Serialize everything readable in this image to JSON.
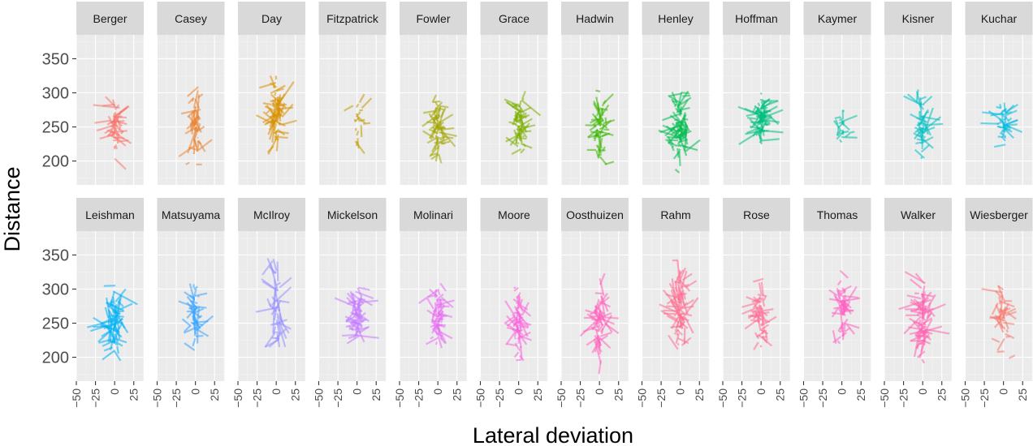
{
  "chart_data": {
    "type": "facet_segments",
    "xlabel": "Lateral deviation",
    "ylabel": "Distance",
    "xlim": [
      -50,
      38
    ],
    "ylim": [
      165,
      385
    ],
    "x_ticks": [
      -50,
      -25,
      0,
      25
    ],
    "x_tick_labels": [
      "-50",
      "-25",
      "0",
      "25"
    ],
    "y_ticks": [
      200,
      250,
      300,
      350
    ],
    "y_tick_labels": [
      "200",
      "250",
      "300",
      "350"
    ],
    "grid": true,
    "legend": "none",
    "colors": {
      "panel_background": "#ebebeb",
      "strip_background": "#d9d9d9",
      "grid_major": "#ffffff",
      "grid_minor": "#f4f4f4"
    },
    "panels": [
      {
        "name": "Berger",
        "color": "#F8766D",
        "center": [
          0,
          255
        ],
        "spread": [
          9,
          18
        ],
        "x_range": [
          -45,
          25
        ],
        "y_range": [
          188,
          318
        ],
        "n": 55
      },
      {
        "name": "Casey",
        "color": "#EA8331",
        "center": [
          0,
          255
        ],
        "spread": [
          7,
          25
        ],
        "x_range": [
          -25,
          25
        ],
        "y_range": [
          195,
          322
        ],
        "n": 55
      },
      {
        "name": "Day",
        "color": "#D89000",
        "center": [
          0,
          270
        ],
        "spread": [
          10,
          22
        ],
        "x_range": [
          -30,
          38
        ],
        "y_range": [
          195,
          325
        ],
        "n": 80
      },
      {
        "name": "Fitzpatrick",
        "color": "#C09B00",
        "center": [
          0,
          255
        ],
        "spread": [
          9,
          18
        ],
        "x_range": [
          -30,
          35
        ],
        "y_range": [
          190,
          300
        ],
        "n": 18
      },
      {
        "name": "Fowler",
        "color": "#A3A500",
        "center": [
          0,
          252
        ],
        "spread": [
          8,
          22
        ],
        "x_range": [
          -30,
          25
        ],
        "y_range": [
          172,
          322
        ],
        "n": 65
      },
      {
        "name": "Grace",
        "color": "#7CAE00",
        "center": [
          0,
          258
        ],
        "spread": [
          9,
          20
        ],
        "x_range": [
          -40,
          30
        ],
        "y_range": [
          200,
          315
        ],
        "n": 65
      },
      {
        "name": "Hadwin",
        "color": "#39B600",
        "center": [
          0,
          250
        ],
        "spread": [
          8,
          20
        ],
        "x_range": [
          -25,
          25
        ],
        "y_range": [
          195,
          318
        ],
        "n": 55
      },
      {
        "name": "Henley",
        "color": "#00BB4E",
        "center": [
          0,
          250
        ],
        "spread": [
          10,
          22
        ],
        "x_range": [
          -30,
          30
        ],
        "y_range": [
          180,
          325
        ],
        "n": 80
      },
      {
        "name": "Hoffman",
        "color": "#00BF7D",
        "center": [
          0,
          262
        ],
        "spread": [
          10,
          18
        ],
        "x_range": [
          -30,
          32
        ],
        "y_range": [
          180,
          300
        ],
        "n": 80
      },
      {
        "name": "Kaymer",
        "color": "#00C1A3",
        "center": [
          0,
          250
        ],
        "spread": [
          8,
          12
        ],
        "x_range": [
          -20,
          20
        ],
        "y_range": [
          220,
          275
        ],
        "n": 22
      },
      {
        "name": "Kisner",
        "color": "#00BFC4",
        "center": [
          0,
          250
        ],
        "spread": [
          9,
          22
        ],
        "x_range": [
          -25,
          28
        ],
        "y_range": [
          190,
          325
        ],
        "n": 55
      },
      {
        "name": "Kuchar",
        "color": "#00BAE0",
        "center": [
          0,
          255
        ],
        "spread": [
          10,
          14
        ],
        "x_range": [
          -30,
          35
        ],
        "y_range": [
          210,
          295
        ],
        "n": 45
      },
      {
        "name": "Leishman",
        "color": "#00B0F6",
        "center": [
          0,
          258
        ],
        "spread": [
          10,
          22
        ],
        "x_range": [
          -38,
          35
        ],
        "y_range": [
          195,
          322
        ],
        "n": 80
      },
      {
        "name": "Matsuyama",
        "color": "#35A2FF",
        "center": [
          0,
          265
        ],
        "spread": [
          9,
          20
        ],
        "x_range": [
          -25,
          28
        ],
        "y_range": [
          200,
          342
        ],
        "n": 50
      },
      {
        "name": "McIlroy",
        "color": "#9590FF",
        "center": [
          0,
          280
        ],
        "spread": [
          10,
          30
        ],
        "x_range": [
          -30,
          35
        ],
        "y_range": [
          215,
          368
        ],
        "n": 45
      },
      {
        "name": "Mickelson",
        "color": "#C77CFF",
        "center": [
          0,
          262
        ],
        "spread": [
          10,
          18
        ],
        "x_range": [
          -35,
          32
        ],
        "y_range": [
          200,
          302
        ],
        "n": 75
      },
      {
        "name": "Molinari",
        "color": "#E76BF3",
        "center": [
          0,
          258
        ],
        "spread": [
          8,
          20
        ],
        "x_range": [
          -25,
          30
        ],
        "y_range": [
          185,
          328
        ],
        "n": 60
      },
      {
        "name": "Moore",
        "color": "#FA62DB",
        "center": [
          0,
          250
        ],
        "spread": [
          8,
          20
        ],
        "x_range": [
          -25,
          30
        ],
        "y_range": [
          195,
          302
        ],
        "n": 60
      },
      {
        "name": "Oosthuizen",
        "color": "#FF62BC",
        "center": [
          0,
          255
        ],
        "spread": [
          9,
          24
        ],
        "x_range": [
          -25,
          25
        ],
        "y_range": [
          175,
          332
        ],
        "n": 60
      },
      {
        "name": "Rahm",
        "color": "#FF6C90",
        "center": [
          0,
          268
        ],
        "spread": [
          10,
          26
        ],
        "x_range": [
          -35,
          32
        ],
        "y_range": [
          195,
          370
        ],
        "n": 80
      },
      {
        "name": "Rose",
        "color": "#FF6C91",
        "center": [
          0,
          262
        ],
        "spread": [
          9,
          18
        ],
        "x_range": [
          -35,
          30
        ],
        "y_range": [
          195,
          318
        ],
        "n": 55
      },
      {
        "name": "Thomas",
        "color": "#FF61C3",
        "center": [
          0,
          268
        ],
        "spread": [
          9,
          20
        ],
        "x_range": [
          -30,
          30
        ],
        "y_range": [
          220,
          335
        ],
        "n": 55
      },
      {
        "name": "Walker",
        "color": "#FF64B0",
        "center": [
          0,
          255
        ],
        "spread": [
          11,
          24
        ],
        "x_range": [
          -35,
          35
        ],
        "y_range": [
          180,
          330
        ],
        "n": 85
      },
      {
        "name": "Wiesberger",
        "color": "#F8766D",
        "center": [
          0,
          255
        ],
        "spread": [
          9,
          22
        ],
        "x_range": [
          -40,
          35
        ],
        "y_range": [
          190,
          305
        ],
        "n": 40
      }
    ]
  }
}
